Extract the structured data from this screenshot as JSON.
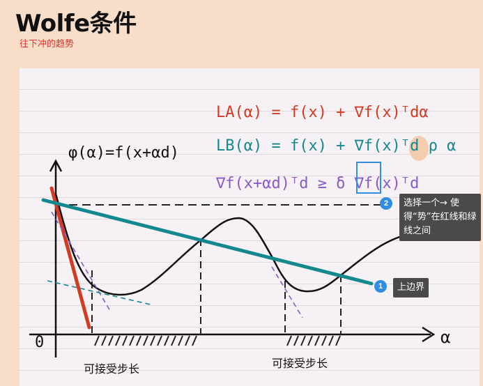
{
  "page": {
    "title": "Wolfe条件",
    "subtitle": "往下冲的趋势"
  },
  "figure": {
    "phi_label": "φ(α)=f(x+αd)",
    "eq_la": "LA(α) = f(x) + ∇f(x)ᵀdα",
    "eq_lb": "LB(α) = f(x) + ∇f(x)ᵀd ρ α",
    "eq_curv": "∇f(x+αd)ᵀd ≥  δ  ∇f(x)ᵀd",
    "axis_origin": "0",
    "axis_x": "α",
    "region_label_1": "可接受步长",
    "region_label_2": "可接受步长",
    "colors": {
      "red_line": "#d33a22",
      "green_line": "#13888f",
      "purple": "#8a5ac9",
      "annotation": "#2f8de4"
    }
  },
  "annotations": [
    {
      "number": "2",
      "text": "选择一个→ 使得“势”在红线和绿线之间"
    },
    {
      "number": "1",
      "text": "上边界"
    }
  ]
}
